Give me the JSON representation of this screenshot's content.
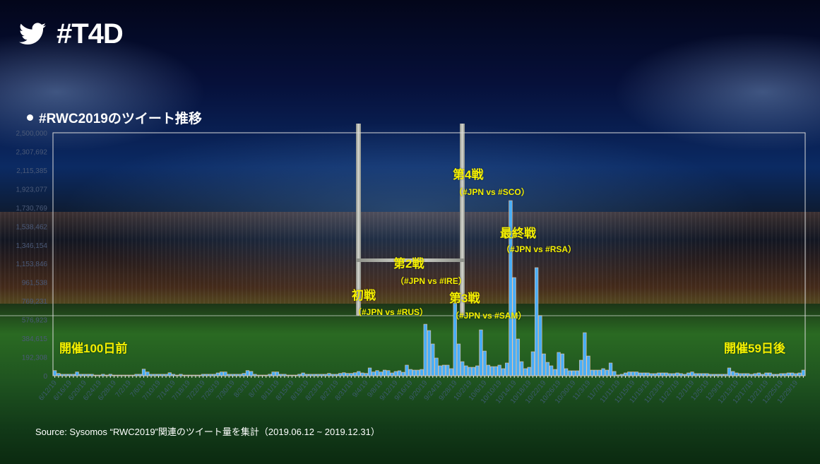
{
  "header": {
    "title": "#T4D",
    "logo_icon": "twitter-bird-icon"
  },
  "colors": {
    "bar_fill": "#49aef7",
    "bar_border": "#f1c7a6",
    "annotation": "#f5f000",
    "axis_text": "#4b5a78"
  },
  "chart_data": {
    "type": "bar",
    "title": "#RWC2019のツイート推移",
    "xlabel": "",
    "ylabel": "",
    "ylim": [
      0,
      2500000
    ],
    "grid": false,
    "y_tick_labels": [
      "0",
      "192,308",
      "384,615",
      "576,923",
      "769,231",
      "961,538",
      "1,153,846",
      "1,346,154",
      "1,538,462",
      "1,730,769",
      "1,923,077",
      "2,115,385",
      "2,307,692",
      "2,500,000"
    ],
    "x_tick_labels": [
      "6/12/19",
      "6/16/19",
      "6/20/19",
      "6/24/19",
      "6/28/19",
      "7/2/19",
      "7/6/19",
      "7/10/19",
      "7/14/19",
      "7/18/19",
      "7/22/19",
      "7/26/19",
      "7/30/19",
      "8/3/19",
      "8/7/19",
      "8/11/19",
      "8/15/19",
      "8/19/19",
      "8/23/19",
      "8/27/19",
      "8/31/19",
      "9/4/19",
      "9/8/19",
      "9/12/19",
      "9/16/19",
      "9/20/19",
      "9/24/19",
      "9/28/19",
      "10/2/19",
      "10/6/19",
      "10/10/19",
      "10/14/19",
      "10/18/19",
      "10/22/19",
      "10/26/19",
      "10/30/19",
      "11/3/19",
      "11/7/19",
      "11/11/19",
      "11/15/19",
      "11/19/19",
      "11/23/19",
      "11/27/19",
      "12/1/19",
      "12/5/19",
      "12/9/19",
      "12/13/19",
      "12/17/19",
      "12/21/19",
      "12/25/19",
      "12/29/19"
    ],
    "values": [
      53000,
      24000,
      15000,
      15000,
      15000,
      15000,
      39000,
      15000,
      15000,
      15000,
      15000,
      7000,
      7000,
      15000,
      7000,
      15000,
      7000,
      7000,
      7000,
      7000,
      7000,
      7000,
      15000,
      15000,
      68000,
      39000,
      15000,
      15000,
      15000,
      15000,
      15000,
      31000,
      15000,
      7000,
      15000,
      7000,
      7000,
      7000,
      7000,
      7000,
      15000,
      15000,
      15000,
      15000,
      29000,
      39000,
      39000,
      15000,
      15000,
      15000,
      15000,
      24000,
      53000,
      44000,
      15000,
      7000,
      7000,
      7000,
      15000,
      39000,
      39000,
      15000,
      15000,
      7000,
      7000,
      7000,
      15000,
      29000,
      15000,
      15000,
      15000,
      15000,
      15000,
      15000,
      24000,
      15000,
      15000,
      24000,
      31000,
      24000,
      24000,
      31000,
      44000,
      29000,
      24000,
      80000,
      39000,
      53000,
      39000,
      58000,
      53000,
      29000,
      44000,
      51000,
      36000,
      109000,
      65000,
      58000,
      58000,
      65000,
      530000,
      465000,
      327000,
      182000,
      102000,
      109000,
      109000,
      73000,
      748000,
      327000,
      145000,
      102000,
      87000,
      87000,
      102000,
      472000,
      254000,
      109000,
      94000,
      94000,
      109000,
      73000,
      131000,
      1802000,
      1010000,
      378000,
      145000,
      73000,
      87000,
      247000,
      1112000,
      618000,
      225000,
      138000,
      102000,
      65000,
      240000,
      225000,
      73000,
      51000,
      51000,
      51000,
      160000,
      443000,
      203000,
      58000,
      58000,
      58000,
      73000,
      58000,
      131000,
      44000,
      8000,
      15000,
      29000,
      39000,
      39000,
      39000,
      29000,
      29000,
      29000,
      22000,
      22000,
      29000,
      29000,
      29000,
      22000,
      22000,
      29000,
      22000,
      15000,
      29000,
      39000,
      22000,
      22000,
      22000,
      22000,
      15000,
      15000,
      15000,
      15000,
      15000,
      80000,
      44000,
      29000,
      22000,
      22000,
      22000,
      15000,
      22000,
      29000,
      15000,
      29000,
      29000,
      15000,
      15000,
      22000,
      22000,
      29000,
      29000,
      22000,
      29000,
      58000
    ],
    "annotations": [
      {
        "label": "初戦",
        "sub": "（#JPN  vs #RUS）"
      },
      {
        "label": "第2戦",
        "sub": "（#JPN  vs #IRE）"
      },
      {
        "label": "第3戦",
        "sub": "（#JPN  vs #SAM）"
      },
      {
        "label": "第4戦",
        "sub": "（#JPN  vs #SCO）"
      },
      {
        "label": "最終戦",
        "sub": "（#JPN  vs #RSA）"
      }
    ],
    "side_labels": {
      "start": "開催100日前",
      "end": "開催59日後"
    }
  },
  "footer": {
    "source": "Source: Sysomos  “RWC2019”関連のツイート量を集計（2019.06.12 ~ 2019.12.31）"
  }
}
